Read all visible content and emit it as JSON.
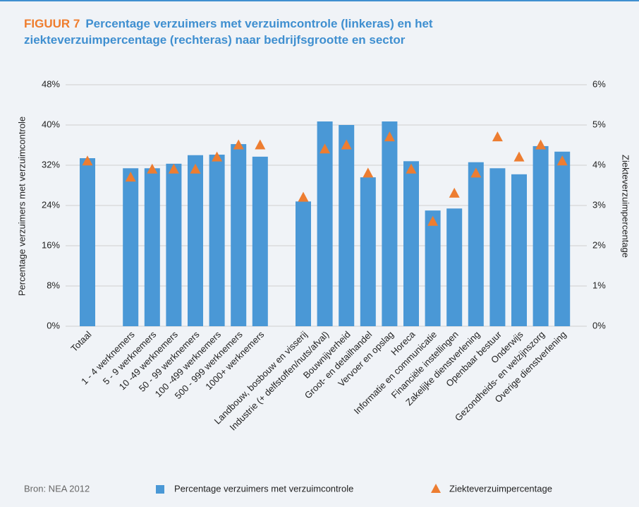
{
  "chart_data": {
    "type": "bar",
    "figure_label": "FIGUUR 7",
    "title": "Percentage verzuimers met verzuimcontrole (linkeras) en het ziekteverzuimpercentage (rechteras) naar bedrijfsgrootte en sector",
    "y_label": "Percentage verzuimers met verzuimcontrole",
    "y2_label": "Ziekteverzuimpercentage",
    "source": "Bron: NEA 2012",
    "categories": [
      "Totaal",
      null,
      "1 - 4 werknemers",
      "5 - 9 werknemers",
      "10 -49 werknemers",
      "50 - 99 werknemers",
      "100 -499 werknemers",
      "500 - 999 werknemers",
      "1000+ werknemers",
      null,
      "Landbouw, bosbouw en visserij",
      "Industrie (+ delfstoffen/nuts/afval)",
      "Bouwnijverheid",
      "Groot- en detailhandel",
      "Vervoer en opslag",
      "Horeca",
      "Informatie en communicatie",
      "Financiële instellingen",
      "Zakelijke dienstverlening",
      "Openbaar bestuur",
      "Onderwijs",
      "Gezondheids- en welzijnszorg",
      "Overige dienstverlening"
    ],
    "series": [
      {
        "name": "Percentage verzuimers met verzuimcontrole",
        "color": "#4a98d6",
        "marker": "bar",
        "values": [
          33.4,
          null,
          31.4,
          31.4,
          32.3,
          34.0,
          34.1,
          36.2,
          33.7,
          null,
          24.8,
          40.7,
          40.0,
          29.6,
          40.7,
          32.8,
          23.0,
          23.4,
          32.6,
          31.4,
          30.2,
          35.8,
          34.7
        ]
      },
      {
        "name": "Ziekteverzuimpercentage",
        "color": "#ed7d31",
        "marker": "triangle",
        "axis": "y2",
        "values": [
          4.1,
          null,
          3.7,
          3.9,
          3.9,
          3.9,
          4.2,
          4.5,
          4.5,
          null,
          3.2,
          4.4,
          4.5,
          3.8,
          4.7,
          3.9,
          2.6,
          3.3,
          3.8,
          4.7,
          4.2,
          4.5,
          4.1
        ]
      }
    ],
    "ylim": [
      0,
      48
    ],
    "yticks": [
      {
        "value": 0,
        "label": "0%"
      },
      {
        "value": 8,
        "label": "8%"
      },
      {
        "value": 16,
        "label": "16%"
      },
      {
        "value": 24,
        "label": "24%"
      },
      {
        "value": 32,
        "label": "32%"
      },
      {
        "value": 40,
        "label": "40%"
      },
      {
        "value": 48,
        "label": "48%"
      }
    ],
    "y2lim": [
      0,
      6
    ],
    "y2ticks": [
      {
        "value": 0,
        "label": "0%"
      },
      {
        "value": 1,
        "label": "1%"
      },
      {
        "value": 2,
        "label": "2%"
      },
      {
        "value": 3,
        "label": "3%"
      },
      {
        "value": 4,
        "label": "4%"
      },
      {
        "value": 5,
        "label": "5%"
      },
      {
        "value": 6,
        "label": "6%"
      }
    ],
    "grid": true,
    "legend": "bottom"
  }
}
